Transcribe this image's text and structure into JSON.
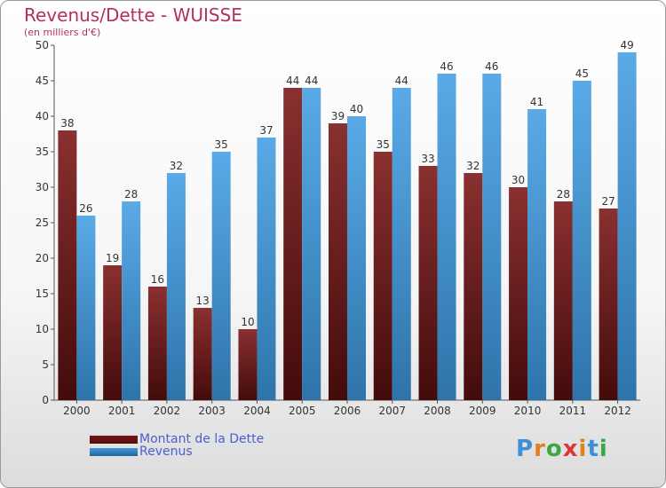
{
  "header": {
    "title": "Revenus/Dette - WUISSE",
    "subtitle": "(en milliers d'€)"
  },
  "chart_data": {
    "type": "bar",
    "categories": [
      "2000",
      "2001",
      "2002",
      "2003",
      "2004",
      "2005",
      "2006",
      "2007",
      "2008",
      "2009",
      "2010",
      "2011",
      "2012"
    ],
    "series": [
      {
        "name": "Montant de la Dette",
        "color": "#7a1414",
        "values": [
          38,
          19,
          16,
          13,
          10,
          44,
          39,
          35,
          33,
          32,
          30,
          28,
          27
        ]
      },
      {
        "name": "Revenus",
        "color": "#3d9be3",
        "values": [
          26,
          28,
          32,
          35,
          37,
          44,
          40,
          44,
          46,
          46,
          41,
          45,
          49
        ]
      }
    ],
    "ylim": [
      0,
      50
    ],
    "yticks": [
      0,
      5,
      10,
      15,
      20,
      25,
      30,
      35,
      40,
      45,
      50
    ],
    "grid": false,
    "legend_position": "bottom-left"
  },
  "legend": {
    "items": [
      {
        "label": "Montant de la Dette",
        "color": "#7a1414"
      },
      {
        "label": "Revenus",
        "color": "#3d9be3"
      }
    ]
  },
  "logo": {
    "letters": [
      "P",
      "r",
      "o",
      "x",
      "i",
      "t",
      "i"
    ],
    "colors": [
      "#3d8fd6",
      "#e2801e",
      "#3ba745",
      "#d93838",
      "#e2801e",
      "#3d8fd6",
      "#3ba745"
    ]
  }
}
